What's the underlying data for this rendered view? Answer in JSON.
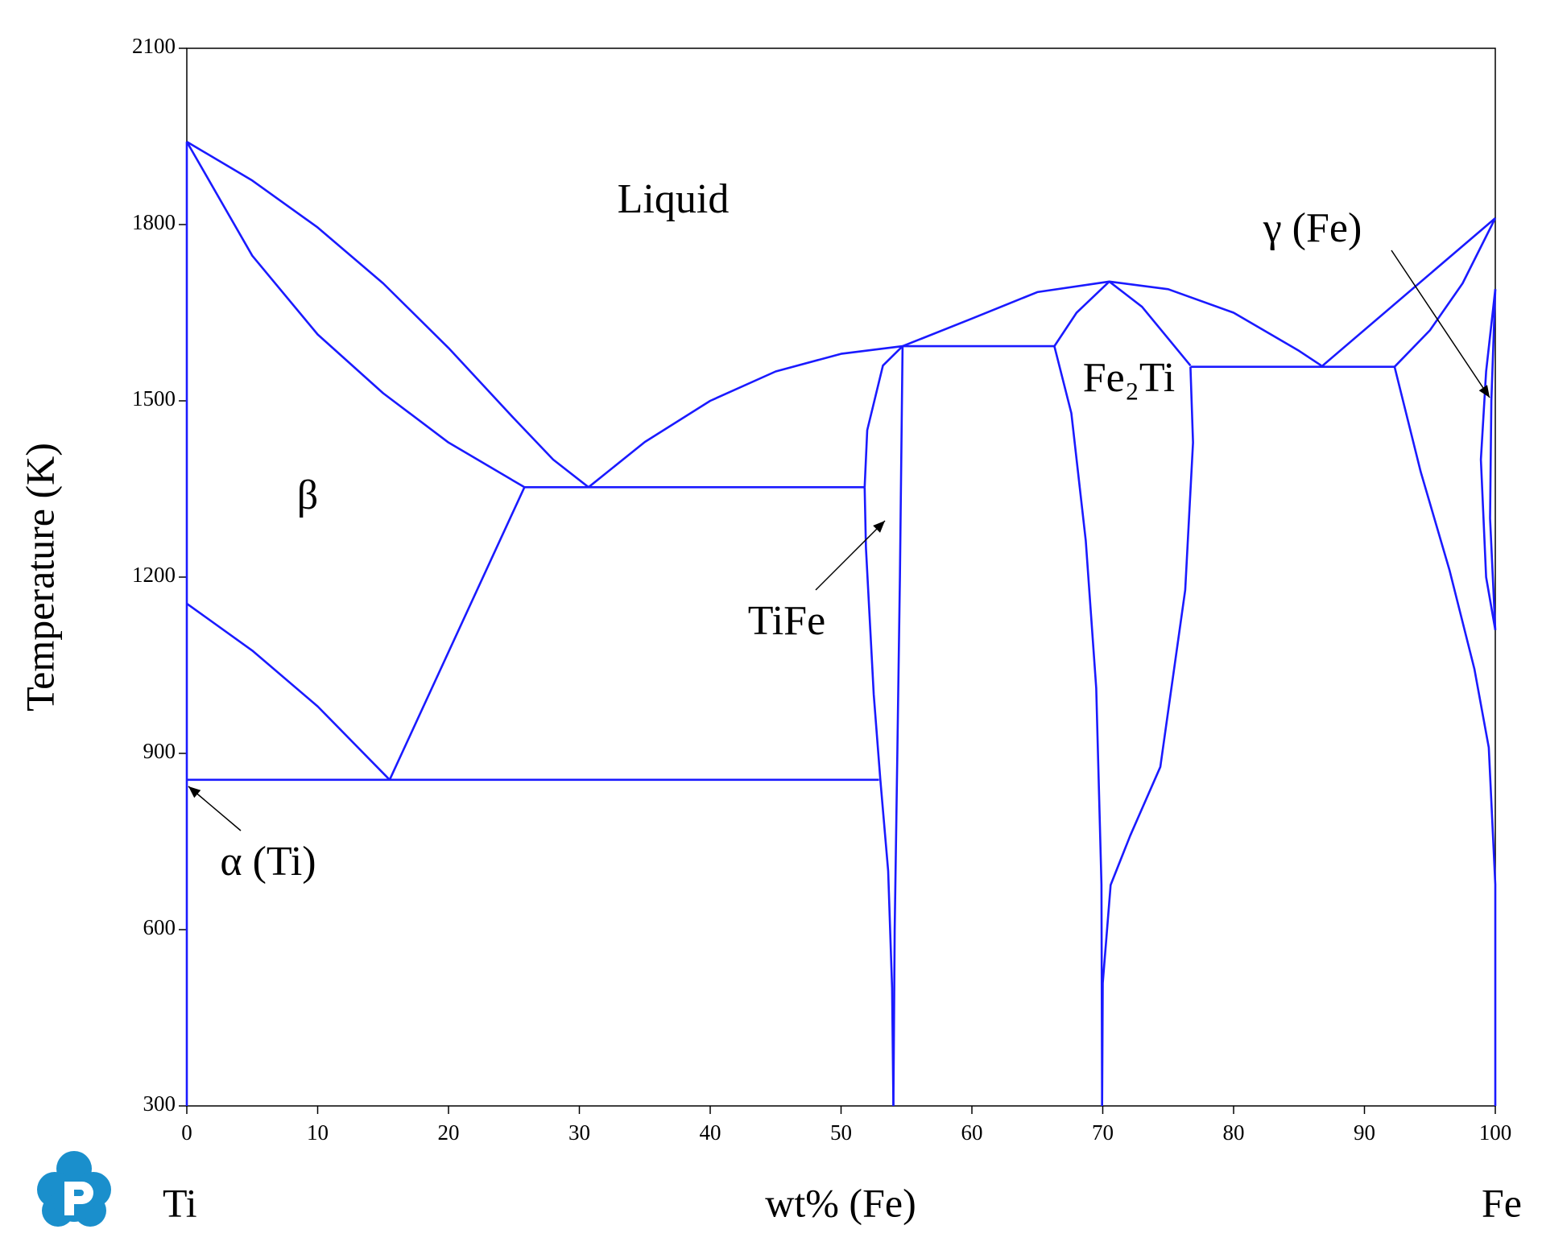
{
  "chart_data": {
    "type": "line",
    "xlabel": "wt% (Fe)",
    "ylabel": "Temperature (K)",
    "end_labels": [
      "Ti",
      "Fe"
    ],
    "annotations": [
      "Liquid",
      "β",
      "TiFe",
      "Fe₂Ti",
      "γ (Fe)",
      "α (Ti)"
    ],
    "color": "#1a1aff",
    "xlim": [
      0,
      100
    ],
    "ylim": [
      300,
      2100
    ],
    "xticks": [
      0,
      10,
      20,
      30,
      40,
      50,
      60,
      70,
      80,
      90,
      100
    ],
    "yticks": [
      300,
      600,
      900,
      1200,
      1500,
      1800,
      2100
    ],
    "series": [
      {
        "x": [
          0,
          5,
          10,
          15,
          20,
          25,
          28,
          30.7
        ],
        "values": [
          1941,
          1875,
          1795,
          1700,
          1590,
          1470,
          1400,
          1353
        ]
      },
      {
        "x": [
          0,
          5,
          10,
          15,
          20,
          25.8
        ],
        "values": [
          1941,
          1747,
          1613,
          1513,
          1429,
          1353
        ]
      },
      {
        "x": [
          25.8,
          51.8
        ],
        "values": [
          1353,
          1353
        ]
      },
      {
        "x": [
          30.7,
          35,
          40,
          45,
          50,
          54.7
        ],
        "values": [
          1353,
          1430,
          1500,
          1550,
          1580,
          1593
        ]
      },
      {
        "x": [
          54.7,
          60,
          65,
          70.5,
          75,
          80,
          85,
          86.7
        ],
        "values": [
          1593,
          1640,
          1685,
          1703,
          1690,
          1650,
          1585,
          1560
        ]
      },
      {
        "x": [
          51.8,
          52,
          53.2,
          54.7
        ],
        "values": [
          1353,
          1450,
          1560,
          1593
        ]
      },
      {
        "x": [
          51.8,
          51.9,
          52.5,
          53,
          53.6,
          53.9,
          54
        ],
        "values": [
          1353,
          1250,
          1000,
          855,
          700,
          500,
          300
        ]
      },
      {
        "x": [
          54.7,
          54.5,
          54.3,
          54.1,
          54
        ],
        "values": [
          1593,
          1200,
          900,
          600,
          300
        ]
      },
      {
        "x": [
          54.7,
          66.3
        ],
        "values": [
          1593,
          1593
        ]
      },
      {
        "x": [
          66.3,
          68,
          70.5,
          73,
          76.7
        ],
        "values": [
          1593,
          1650,
          1703,
          1660,
          1560
        ]
      },
      {
        "x": [
          66.3,
          67.6,
          68.7,
          69.5,
          69.9,
          69.95
        ],
        "values": [
          1593,
          1479,
          1262,
          1011,
          677,
          300
        ]
      },
      {
        "x": [
          76.7,
          76.9,
          76.3,
          74.4,
          72.1,
          70.6,
          70,
          69.95
        ],
        "values": [
          1558,
          1429,
          1178,
          877,
          760,
          676,
          509,
          300
        ]
      },
      {
        "x": [
          76.7,
          92.3
        ],
        "values": [
          1558,
          1558
        ]
      },
      {
        "x": [
          86.7,
          100
        ],
        "values": [
          1558,
          1811
        ]
      },
      {
        "x": [
          92.3,
          95,
          97.5,
          100
        ],
        "values": [
          1558,
          1620,
          1700,
          1811
        ]
      },
      {
        "x": [
          92.3,
          94.3,
          96.5,
          98.4,
          99.5,
          100,
          100
        ],
        "values": [
          1558,
          1379,
          1212,
          1044,
          910,
          677,
          300
        ]
      },
      {
        "x": [
          100,
          99.3,
          98.9,
          99.3,
          100
        ],
        "values": [
          1690,
          1550,
          1400,
          1200,
          1110
        ]
      },
      {
        "x": [
          100,
          99.7,
          99.6,
          100
        ],
        "values": [
          1690,
          1500,
          1300,
          1110
        ]
      },
      {
        "x": [
          0,
          5,
          10,
          15.5
        ],
        "values": [
          1155,
          1075,
          980,
          855
        ]
      },
      {
        "x": [
          15.5,
          25.8
        ],
        "values": [
          855,
          1353
        ]
      },
      {
        "x": [
          0,
          52.9
        ],
        "values": [
          855,
          855
        ]
      },
      {
        "x": [
          0,
          0
        ],
        "values": [
          300,
          1941
        ]
      }
    ]
  }
}
